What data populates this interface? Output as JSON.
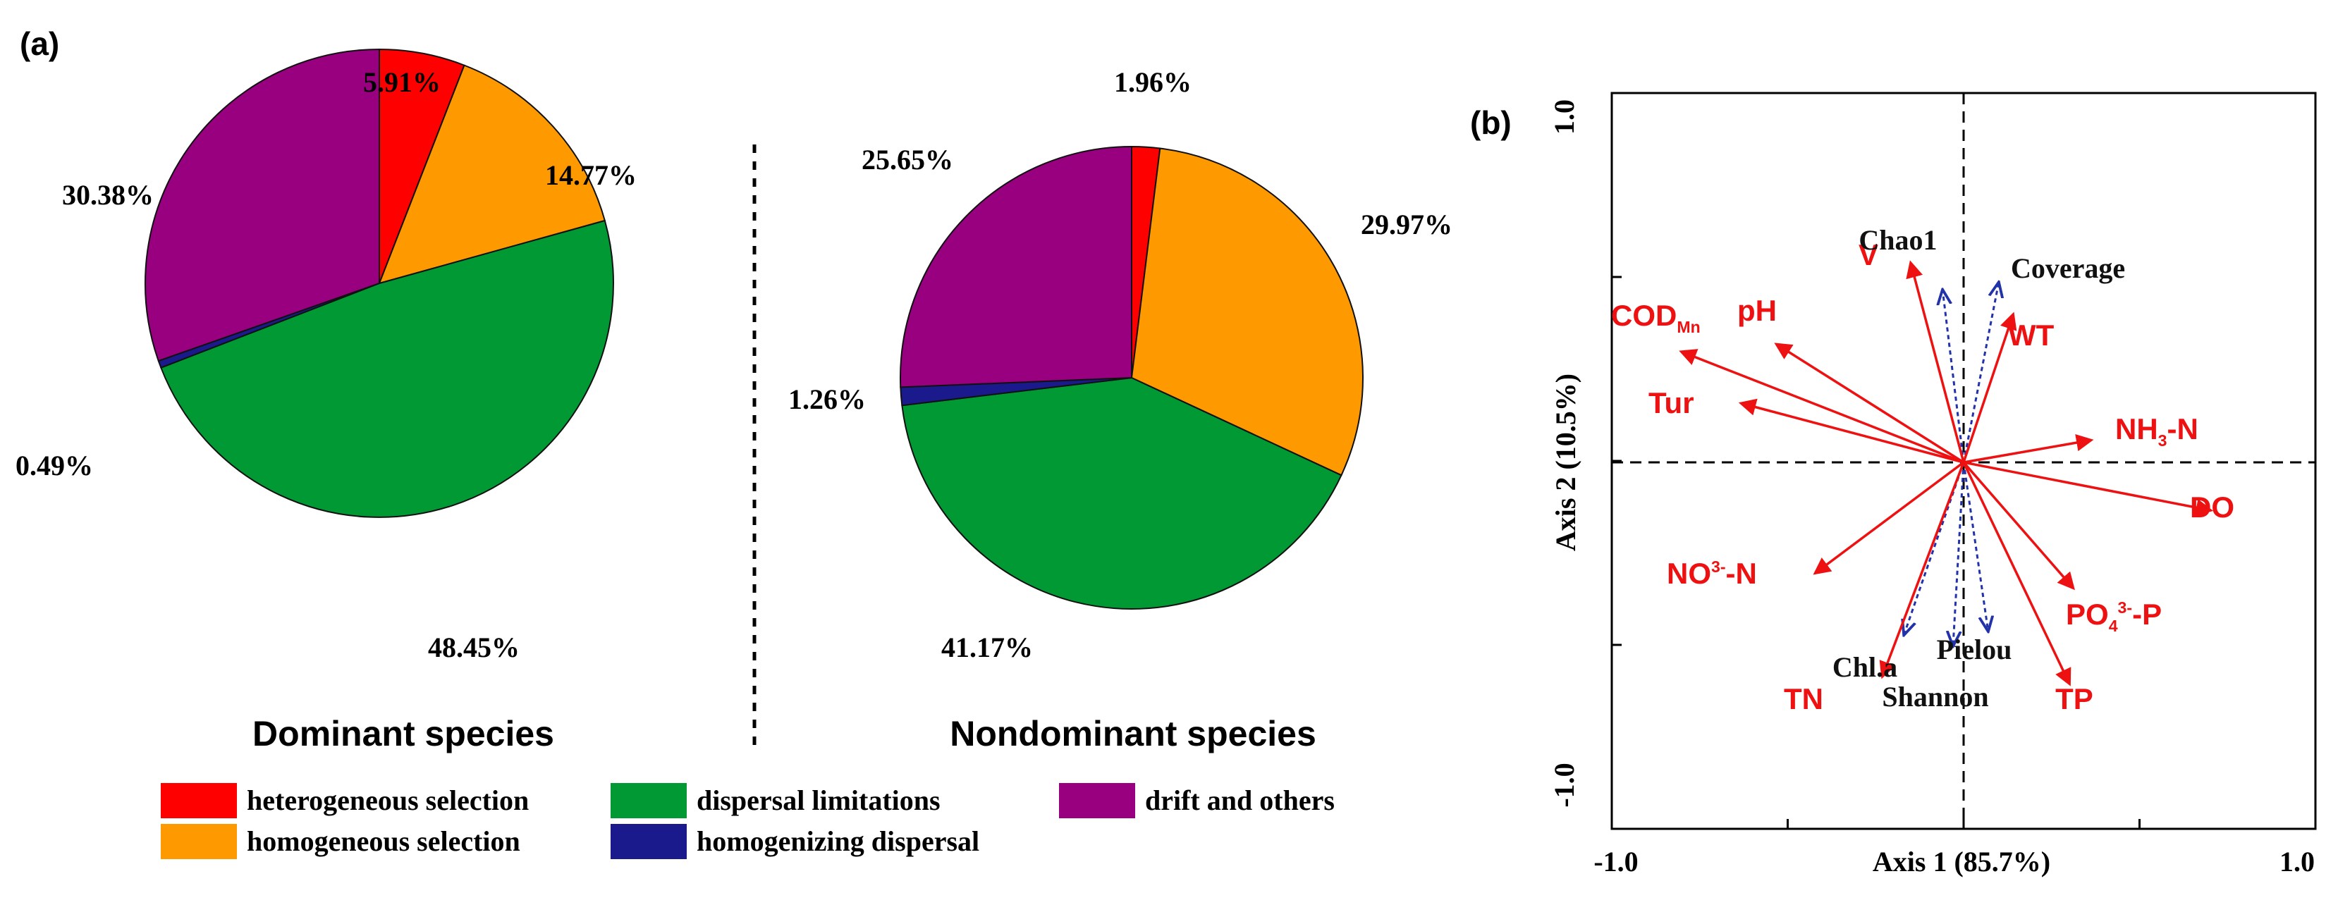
{
  "colors": {
    "heterogeneous_selection": "#ff0000",
    "homogeneous_selection": "#ff9900",
    "dispersal_limitations": "#009933",
    "drift_and_others": "#990080",
    "homogenizing_dispersal": "#1a1a8c",
    "env_arrow": "#ee1111",
    "div_arrow": "#2233aa"
  },
  "panel_a": {
    "label": "(a)",
    "legend": [
      {
        "key": "heterogeneous_selection",
        "label": "heterogeneous selection"
      },
      {
        "key": "homogeneous_selection",
        "label": "homogeneous selection"
      },
      {
        "key": "dispersal_limitations",
        "label": "dispersal limitations"
      },
      {
        "key": "homogenizing_dispersal",
        "label": "homogenizing dispersal"
      },
      {
        "key": "drift_and_others",
        "label": "drift and others"
      }
    ]
  },
  "panel_b": {
    "label": "(b)"
  },
  "chart_data": [
    {
      "type": "pie",
      "title": "Dominant species",
      "start": "12 o'clock, clockwise",
      "slices": [
        {
          "category": "heterogeneous selection",
          "key": "heterogeneous_selection",
          "value": 5.91,
          "label": "5.91%"
        },
        {
          "category": "homogeneous selection",
          "key": "homogeneous_selection",
          "value": 14.77,
          "label": "14.77%"
        },
        {
          "category": "dispersal limitations",
          "key": "dispersal_limitations",
          "value": 48.45,
          "label": "48.45%"
        },
        {
          "category": "homogenizing dispersal",
          "key": "homogenizing_dispersal",
          "value": 0.49,
          "label": "0.49%"
        },
        {
          "category": "drift and others",
          "key": "drift_and_others",
          "value": 30.38,
          "label": "30.38%"
        }
      ]
    },
    {
      "type": "pie",
      "title": "Nondominant species",
      "start": "12 o'clock, clockwise",
      "slices": [
        {
          "category": "heterogeneous selection",
          "key": "heterogeneous_selection",
          "value": 1.96,
          "label": "1.96%"
        },
        {
          "category": "homogeneous selection",
          "key": "homogeneous_selection",
          "value": 29.97,
          "label": "29.97%"
        },
        {
          "category": "dispersal limitations",
          "key": "dispersal_limitations",
          "value": 41.17,
          "label": "41.17%"
        },
        {
          "category": "homogenizing dispersal",
          "key": "homogenizing_dispersal",
          "value": 1.26,
          "label": "1.26%"
        },
        {
          "category": "drift and others",
          "key": "drift_and_others",
          "value": 25.65,
          "label": "25.65%"
        }
      ]
    },
    {
      "type": "scatter",
      "subtype": "biplot",
      "xlabel": "Axis 1 (85.7%)",
      "ylabel": "Axis 2 (10.5%)",
      "xlim": [
        -1.0,
        1.0
      ],
      "ylim": [
        -1.0,
        1.0
      ],
      "xticks": [
        "-1.0",
        "1.0"
      ],
      "yticks": [
        "1.0",
        "-1.0"
      ],
      "environmental_vectors": [
        {
          "name": "V",
          "x": -0.15,
          "y": 0.54
        },
        {
          "name": "pH",
          "x": -0.53,
          "y": 0.32
        },
        {
          "name": "COD_Mn",
          "name_main": "COD",
          "name_sub": "Mn",
          "x": -0.8,
          "y": 0.3
        },
        {
          "name": "Tur",
          "x": -0.63,
          "y": 0.16
        },
        {
          "name": "WT",
          "x": 0.14,
          "y": 0.4
        },
        {
          "name": "NH3-N",
          "name_main": "NH",
          "name_sub": "3",
          "name_tail": "-N",
          "x": 0.36,
          "y": 0.06
        },
        {
          "name": "DO",
          "x": 0.7,
          "y": -0.13
        },
        {
          "name": "NO3--N",
          "name_main": "NO",
          "name_sup": "3-",
          "name_tail": "-N",
          "x": -0.42,
          "y": -0.3
        },
        {
          "name": "PO43--P",
          "name_main": "PO",
          "name_sub": "4",
          "name_sup": "3-",
          "name_tail": "-P",
          "x": 0.31,
          "y": -0.34
        },
        {
          "name": "TN",
          "x": -0.23,
          "y": -0.58
        },
        {
          "name": "TP",
          "x": 0.3,
          "y": -0.6
        }
      ],
      "diversity_vectors": [
        {
          "name": "Chao1",
          "x": -0.06,
          "y": 0.47
        },
        {
          "name": "Coverage",
          "x": 0.1,
          "y": 0.49
        },
        {
          "name": "Chl.a",
          "x": -0.17,
          "y": -0.47
        },
        {
          "name": "Pielou",
          "x": 0.07,
          "y": -0.46
        },
        {
          "name": "Shannon",
          "x": -0.03,
          "y": -0.5
        }
      ]
    }
  ]
}
